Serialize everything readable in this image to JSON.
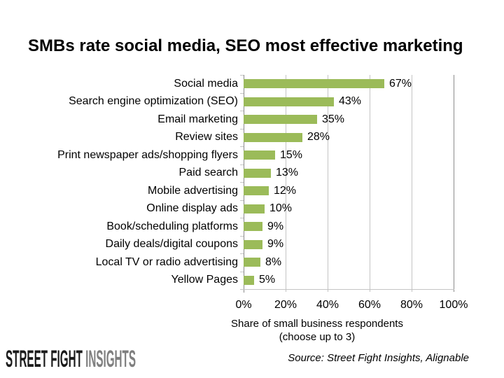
{
  "title": "SMBs rate social media, SEO most effective marketing",
  "chart_data": {
    "type": "bar",
    "orientation": "horizontal",
    "categories": [
      "Social media",
      "Search engine optimization (SEO)",
      "Email marketing",
      "Review sites",
      "Print newspaper ads/shopping flyers",
      "Paid search",
      "Mobile advertising",
      "Online display ads",
      "Book/scheduling platforms",
      "Daily deals/digital coupons",
      "Local TV or radio advertising",
      "Yellow Pages"
    ],
    "values": [
      67,
      43,
      35,
      28,
      15,
      13,
      12,
      10,
      9,
      9,
      8,
      5
    ],
    "value_suffix": "%",
    "xlabel": "Share of small business respondents (choose up to 3)",
    "x_ticks": [
      "0%",
      "20%",
      "40%",
      "60%",
      "80%",
      "100%"
    ],
    "xlim": [
      0,
      100
    ],
    "grid": "vertical",
    "legend": "none",
    "bar_color": "#9bbb59",
    "gridline_color": "#c4c4c4",
    "axis_color": "#8c8c8c"
  },
  "axis_caption": {
    "line1": "Share of small business respondents",
    "line2": "(choose up to 3)"
  },
  "footer": {
    "logo_part1": "STREET FIGHT ",
    "logo_part2": "INSIGHTS",
    "logo_color1": "#1b1b1b",
    "logo_color2": "#7f7f7f",
    "source": "Source: Street Fight Insights, Alignable"
  }
}
